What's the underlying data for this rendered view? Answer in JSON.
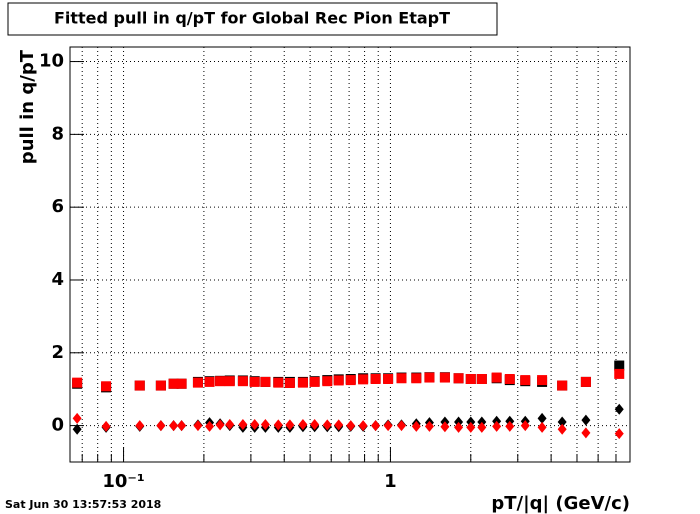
{
  "chart_data": {
    "type": "scatter",
    "title": "Fitted pull in q/pT for Global Rec Pion EtapT",
    "y_label": "pull in q/pT",
    "x_label": "pT/|q| (GeV/c)",
    "timestamp": "Sat Jun 30 13:57:53 2018",
    "log_x": true,
    "grid": true,
    "xlim": [
      0.063,
      7.9
    ],
    "ylim": [
      -1,
      10.4
    ],
    "xticks": [
      {
        "value": 0.1,
        "label": "10⁻¹"
      },
      1
    ],
    "xminorticks": [
      0.07,
      0.08,
      0.09,
      0.2,
      0.3,
      0.4,
      0.5,
      0.6,
      0.7,
      0.8,
      0.9,
      2,
      3,
      4,
      5,
      6,
      7
    ],
    "yticks": [
      0,
      2,
      4,
      6,
      8,
      10
    ],
    "x": [
      0.067,
      0.086,
      0.115,
      0.138,
      0.154,
      0.165,
      0.19,
      0.21,
      0.23,
      0.25,
      0.28,
      0.31,
      0.34,
      0.38,
      0.42,
      0.47,
      0.52,
      0.58,
      0.64,
      0.71,
      0.79,
      0.88,
      0.98,
      1.1,
      1.25,
      1.4,
      1.6,
      1.8,
      2.0,
      2.2,
      2.5,
      2.8,
      3.2,
      3.7,
      4.4,
      5.4,
      7.2
    ],
    "series": [
      {
        "color": "#000000",
        "marker": "square",
        "values": [
          1.15,
          1.05,
          1.1,
          1.1,
          1.15,
          1.15,
          1.2,
          1.22,
          1.23,
          1.24,
          1.24,
          1.22,
          1.2,
          1.2,
          1.2,
          1.2,
          1.22,
          1.25,
          1.27,
          1.28,
          1.3,
          1.3,
          1.3,
          1.32,
          1.32,
          1.33,
          1.33,
          1.3,
          1.28,
          1.28,
          1.3,
          1.25,
          1.22,
          1.2,
          1.1,
          1.2,
          1.65
        ]
      },
      {
        "color": "#ff0000",
        "marker": "square",
        "values": [
          1.18,
          1.08,
          1.1,
          1.1,
          1.15,
          1.15,
          1.18,
          1.2,
          1.22,
          1.22,
          1.22,
          1.2,
          1.2,
          1.18,
          1.17,
          1.18,
          1.2,
          1.22,
          1.24,
          1.25,
          1.27,
          1.28,
          1.28,
          1.3,
          1.3,
          1.32,
          1.32,
          1.3,
          1.28,
          1.28,
          1.32,
          1.28,
          1.25,
          1.25,
          1.1,
          1.2,
          1.42
        ]
      },
      {
        "color": "#000000",
        "marker": "diamond",
        "values": [
          -0.1,
          -0.05,
          -0.02,
          0.0,
          0.0,
          0.0,
          0.02,
          0.08,
          0.05,
          0.0,
          -0.05,
          -0.05,
          -0.05,
          -0.05,
          -0.05,
          -0.03,
          -0.03,
          -0.03,
          -0.03,
          -0.02,
          -0.02,
          0.0,
          0.02,
          0.02,
          0.05,
          0.08,
          0.1,
          0.1,
          0.1,
          0.1,
          0.12,
          0.12,
          0.12,
          0.2,
          0.1,
          0.15,
          0.45
        ]
      },
      {
        "color": "#ff0000",
        "marker": "diamond",
        "values": [
          0.2,
          -0.02,
          0.0,
          0.0,
          0.0,
          0.0,
          0.0,
          -0.02,
          0.02,
          0.03,
          0.03,
          0.03,
          0.03,
          0.02,
          0.02,
          0.03,
          0.03,
          0.02,
          0.02,
          0.0,
          0.0,
          0.0,
          0.0,
          0.0,
          -0.02,
          -0.02,
          -0.03,
          -0.05,
          -0.05,
          -0.05,
          -0.02,
          -0.02,
          0.0,
          -0.05,
          -0.1,
          -0.2,
          -0.22
        ]
      }
    ]
  }
}
